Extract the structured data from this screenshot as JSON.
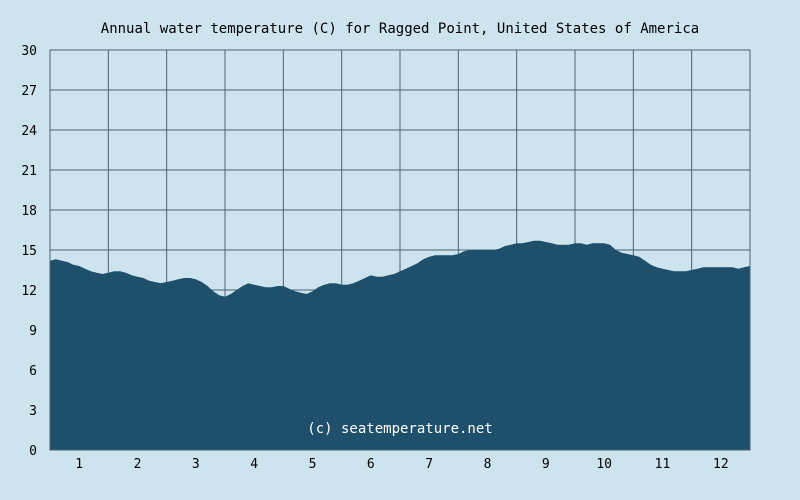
{
  "chart_data": {
    "type": "area",
    "title": "Annual water temperature (C) for Ragged Point, United States of America",
    "xlabel": "",
    "ylabel": "",
    "ylim": [
      0,
      30
    ],
    "xlim": [
      0.5,
      12.5
    ],
    "y_ticks": [
      "0",
      "3",
      "6",
      "9",
      "12",
      "15",
      "18",
      "21",
      "24",
      "27",
      "30"
    ],
    "x_ticks": [
      "1",
      "2",
      "3",
      "4",
      "5",
      "6",
      "7",
      "8",
      "9",
      "10",
      "11",
      "12"
    ],
    "grid": true,
    "watermark": "(c) seatemperature.net",
    "colors": {
      "background": "#cde3ee",
      "plot_background": "#cde3ee",
      "fill": "#1e4f6b",
      "grid": "#4a6475"
    },
    "x": [
      0.5,
      0.6,
      0.7,
      0.8,
      0.9,
      1.0,
      1.1,
      1.2,
      1.3,
      1.4,
      1.5,
      1.6,
      1.7,
      1.8,
      1.9,
      2.0,
      2.1,
      2.2,
      2.3,
      2.4,
      2.5,
      2.6,
      2.7,
      2.8,
      2.9,
      3.0,
      3.1,
      3.2,
      3.3,
      3.4,
      3.5,
      3.6,
      3.7,
      3.8,
      3.9,
      4.0,
      4.1,
      4.2,
      4.3,
      4.4,
      4.5,
      4.6,
      4.7,
      4.8,
      4.9,
      5.0,
      5.1,
      5.2,
      5.3,
      5.4,
      5.5,
      5.6,
      5.7,
      5.8,
      5.9,
      6.0,
      6.1,
      6.2,
      6.3,
      6.4,
      6.5,
      6.6,
      6.7,
      6.8,
      6.9,
      7.0,
      7.1,
      7.2,
      7.3,
      7.4,
      7.5,
      7.6,
      7.7,
      7.8,
      7.9,
      8.0,
      8.1,
      8.2,
      8.3,
      8.4,
      8.5,
      8.6,
      8.7,
      8.8,
      8.9,
      9.0,
      9.1,
      9.2,
      9.3,
      9.4,
      9.5,
      9.6,
      9.7,
      9.8,
      9.9,
      10.0,
      10.1,
      10.2,
      10.3,
      10.4,
      10.5,
      10.6,
      10.7,
      10.8,
      10.9,
      11.0,
      11.1,
      11.2,
      11.3,
      11.4,
      11.5,
      11.6,
      11.7,
      11.8,
      11.9,
      12.0,
      12.1,
      12.2,
      12.3,
      12.4,
      12.5
    ],
    "values": [
      14.2,
      14.3,
      14.2,
      14.1,
      13.9,
      13.8,
      13.6,
      13.4,
      13.3,
      13.2,
      13.3,
      13.4,
      13.4,
      13.3,
      13.1,
      13.0,
      12.9,
      12.7,
      12.6,
      12.5,
      12.6,
      12.7,
      12.8,
      12.9,
      12.9,
      12.8,
      12.6,
      12.3,
      11.9,
      11.6,
      11.5,
      11.7,
      12.0,
      12.3,
      12.5,
      12.4,
      12.3,
      12.2,
      12.2,
      12.3,
      12.3,
      12.1,
      11.9,
      11.8,
      11.7,
      11.9,
      12.2,
      12.4,
      12.5,
      12.5,
      12.4,
      12.4,
      12.5,
      12.7,
      12.9,
      13.1,
      13.0,
      13.0,
      13.1,
      13.2,
      13.4,
      13.6,
      13.8,
      14.0,
      14.3,
      14.5,
      14.6,
      14.6,
      14.6,
      14.6,
      14.7,
      14.9,
      15.0,
      15.0,
      15.0,
      15.0,
      15.0,
      15.1,
      15.3,
      15.4,
      15.5,
      15.5,
      15.6,
      15.7,
      15.7,
      15.6,
      15.5,
      15.4,
      15.4,
      15.4,
      15.5,
      15.5,
      15.4,
      15.5,
      15.5,
      15.5,
      15.4,
      15.0,
      14.8,
      14.7,
      14.6,
      14.5,
      14.2,
      13.9,
      13.7,
      13.6,
      13.5,
      13.4,
      13.4,
      13.4,
      13.5,
      13.6,
      13.7,
      13.7,
      13.7,
      13.7,
      13.7,
      13.7,
      13.6,
      13.7,
      13.8
    ]
  }
}
